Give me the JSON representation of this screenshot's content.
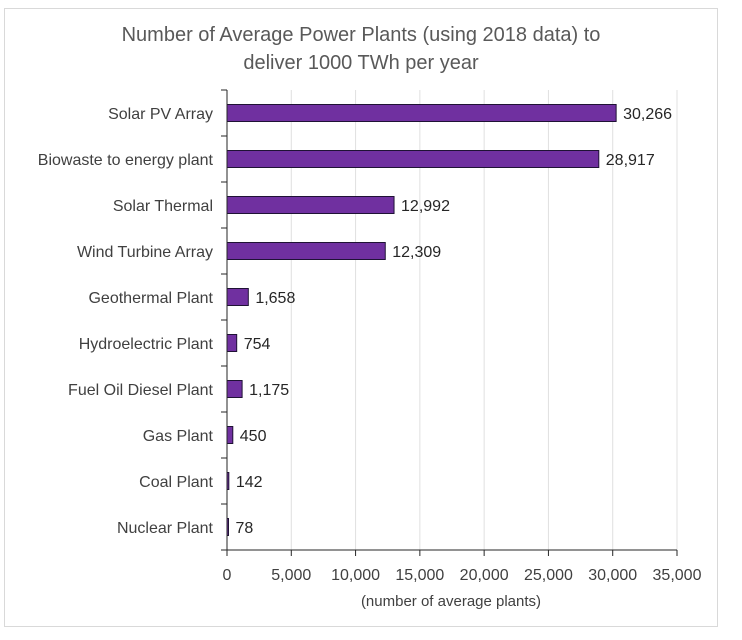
{
  "chart_data": {
    "type": "bar",
    "orientation": "horizontal",
    "title_lines": [
      "Number of Average Power Plants (using 2018 data) to",
      "deliver 1000 TWh per year"
    ],
    "xlabel": "(number of average plants)",
    "ylabel": "",
    "categories": [
      "Solar PV Array",
      "Biowaste to energy plant",
      "Solar Thermal",
      "Wind Turbine Array",
      "Geothermal Plant",
      "Hydroelectric Plant",
      "Fuel Oil Diesel Plant",
      "Gas Plant",
      "Coal Plant",
      "Nuclear Plant"
    ],
    "values": [
      30266,
      28917,
      12992,
      12309,
      1658,
      754,
      1175,
      450,
      142,
      78
    ],
    "data_labels": [
      "30,266",
      "28,917",
      "12,992",
      "12,309",
      "1,658",
      "754",
      "1,175",
      "450",
      "142",
      "78"
    ],
    "xlim": [
      0,
      35000
    ],
    "xticks": [
      0,
      5000,
      10000,
      15000,
      20000,
      25000,
      30000,
      35000
    ],
    "xtick_labels": [
      "0",
      "5,000",
      "10,000",
      "15,000",
      "20,000",
      "25,000",
      "30,000",
      "35,000"
    ],
    "grid": "vertical",
    "legend": "none",
    "bar_color": "#7030a0",
    "bar_edge_color": "#1f1235",
    "gridline_color": "#e0e0e0",
    "axis_color": "#262626"
  }
}
